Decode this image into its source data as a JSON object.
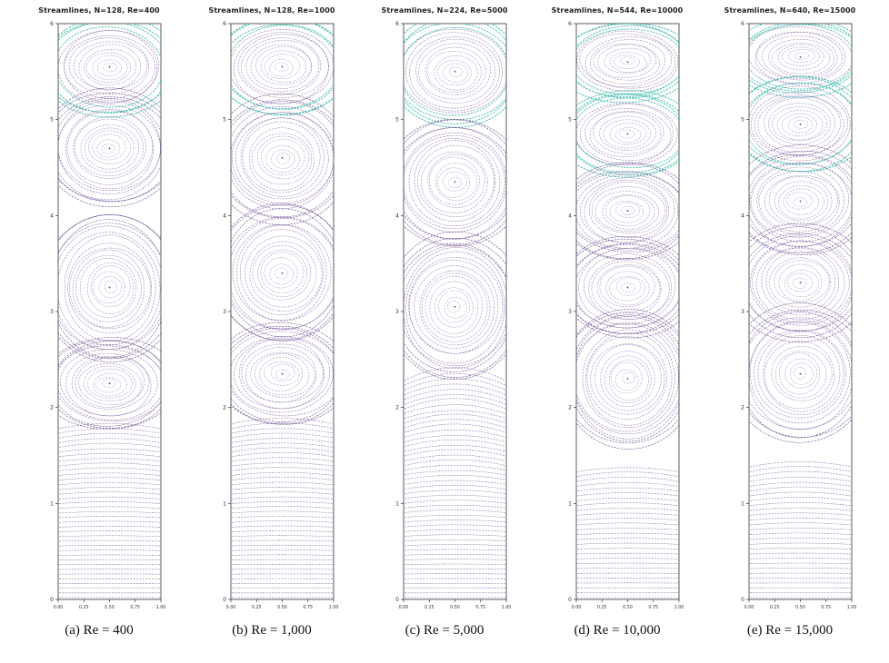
{
  "figure": {
    "background": "#ffffff",
    "description": "Five stacked-cavity streamline plots at increasing Reynolds numbers"
  },
  "colors": {
    "stream_purple": "#7a569e",
    "stream_purple_dark": "#573a82",
    "stream_teal": "#3ab8ac",
    "axis": "#333333",
    "title_text": "#222222",
    "caption_text": "#111111"
  },
  "chart_data": [
    {
      "type": "streamline",
      "title": "Streamlines, N=128, Re=400",
      "caption": "(a) Re = 400",
      "N": 128,
      "Re": 400,
      "xlim": [
        0,
        1
      ],
      "ylim": [
        0,
        6
      ],
      "xtick_labels": [
        "0.00",
        "0.25",
        "0.50",
        "0.75",
        "1.00"
      ],
      "ytick_labels": [
        "0",
        "1",
        "2",
        "3",
        "4",
        "5",
        "6"
      ],
      "vortices": [
        {
          "y": 5.55,
          "ry": 0.52,
          "teal": true
        },
        {
          "y": 4.7,
          "ry": 0.62
        },
        {
          "y": 3.25,
          "ry": 0.78
        },
        {
          "y": 2.25,
          "ry": 0.5
        }
      ],
      "horizontal_region_top": 1.8,
      "bend": 10
    },
    {
      "type": "streamline",
      "title": "Streamlines, N=128, Re=1000",
      "caption": "(b)   Re = 1,000",
      "N": 128,
      "Re": 1000,
      "xlim": [
        0,
        1
      ],
      "ylim": [
        0,
        6
      ],
      "xtick_labels": [
        "0.00",
        "0.25",
        "0.50",
        "0.75",
        "1.00"
      ],
      "ytick_labels": [
        "0",
        "1",
        "2",
        "3",
        "4",
        "5",
        "6"
      ],
      "vortices": [
        {
          "y": 5.55,
          "ry": 0.52,
          "teal": true
        },
        {
          "y": 4.6,
          "ry": 0.66
        },
        {
          "y": 3.4,
          "ry": 0.72
        },
        {
          "y": 2.35,
          "ry": 0.55
        }
      ],
      "horizontal_region_top": 1.85,
      "bend": 12
    },
    {
      "type": "streamline",
      "title": "Streamlines, N=224, Re=5000",
      "caption": "(c) Re = 5,000",
      "N": 224,
      "Re": 5000,
      "xlim": [
        0,
        1
      ],
      "ylim": [
        0,
        6
      ],
      "xtick_labels": [
        "0.00",
        "0.25",
        "0.50",
        "0.75",
        "1.00"
      ],
      "ytick_labels": [
        "0",
        "1",
        "2",
        "3",
        "4",
        "5",
        "6"
      ],
      "vortices": [
        {
          "y": 5.5,
          "ry": 0.58,
          "teal": true
        },
        {
          "y": 4.35,
          "ry": 0.68
        },
        {
          "y": 3.05,
          "ry": 0.78
        }
      ],
      "horizontal_region_top": 2.3,
      "bend": 26
    },
    {
      "type": "streamline",
      "title": "Streamlines, N=544, Re=10000",
      "caption": "(d) Re = 10,000",
      "N": 544,
      "Re": 10000,
      "xlim": [
        0,
        1
      ],
      "ylim": [
        0,
        6
      ],
      "xtick_labels": [
        "0.00",
        "0.25",
        "0.50",
        "0.75",
        "1.00"
      ],
      "ytick_labels": [
        "0",
        "1",
        "2",
        "3",
        "4",
        "5",
        "6"
      ],
      "vortices": [
        {
          "y": 5.6,
          "ry": 0.42,
          "teal": true
        },
        {
          "y": 4.85,
          "ry": 0.45,
          "teal": true
        },
        {
          "y": 4.05,
          "ry": 0.5
        },
        {
          "y": 3.25,
          "ry": 0.55
        },
        {
          "y": 2.3,
          "ry": 0.75
        }
      ],
      "horizontal_region_top": 1.35,
      "bend": 10
    },
    {
      "type": "streamline",
      "title": "Streamlines, N=640, Re=15000",
      "caption": "(e) Re = 15,000",
      "N": 640,
      "Re": 15000,
      "xlim": [
        0,
        1
      ],
      "ylim": [
        0,
        6
      ],
      "xtick_labels": [
        "0.00",
        "0.25",
        "0.50",
        "0.75",
        "1.00"
      ],
      "ytick_labels": [
        "0",
        "1",
        "2",
        "3",
        "4",
        "5",
        "6"
      ],
      "vortices": [
        {
          "y": 5.65,
          "ry": 0.4,
          "teal": true
        },
        {
          "y": 4.95,
          "ry": 0.5,
          "teal": true
        },
        {
          "y": 4.15,
          "ry": 0.55
        },
        {
          "y": 3.3,
          "ry": 0.6
        },
        {
          "y": 2.35,
          "ry": 0.72
        }
      ],
      "horizontal_region_top": 1.4,
      "bend": 12
    }
  ]
}
